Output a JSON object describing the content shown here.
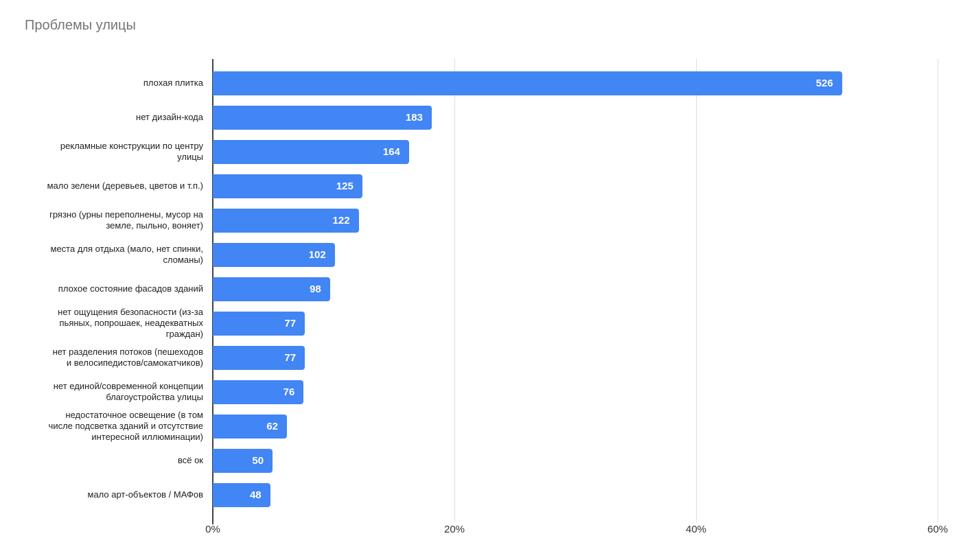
{
  "colors": {
    "bar": "#4285F4",
    "bar_value_label": "#ffffff",
    "title": "#757575",
    "category_label": "#212121",
    "axis_label": "#333333",
    "gridline": "#dcdcdc",
    "axis_line": "#424242",
    "background": "#ffffff"
  },
  "chart_data": {
    "type": "bar",
    "orientation": "horizontal",
    "title": "Проблемы улицы",
    "categories": [
      "плохая плитка",
      "нет дизайн-кода",
      "рекламные конструкции по центру\nулицы",
      "мало зелени (деревьев, цветов и т.п.)",
      "грязно (урны переполнены, мусор на\nземле, пыльно, воняет)",
      "места для отдыха (мало, нет спинки,\nсломаны)",
      "плохое состояние фасадов зданий",
      "нет ощущения безопасности (из-за\nпьяных, попрошаек, неадекватных\nграждан)",
      "нет разделения потоков (пешеходов\nи велосипедистов/самокатчиков)",
      "нет единой/современной концепции\nблагоустройства улицы",
      "недостаточное освещение (в том\nчисле подсветка зданий и отсутствие\nинтересной иллюминации)",
      "всё ок",
      "мало арт-объектов / МАФов"
    ],
    "values": [
      526,
      183,
      164,
      125,
      122,
      102,
      98,
      77,
      77,
      76,
      62,
      50,
      48
    ],
    "percents": [
      52.08,
      18.12,
      16.24,
      12.38,
      12.08,
      10.1,
      9.7,
      7.62,
      7.62,
      7.52,
      6.14,
      4.95,
      4.75
    ],
    "x_axis": {
      "ticks": [
        "0%",
        "20%",
        "40%",
        "60%"
      ],
      "min": 0,
      "max": 60,
      "unit": "percent"
    },
    "legend": "none",
    "grid": true,
    "bar_labels_position": "inside-end"
  }
}
